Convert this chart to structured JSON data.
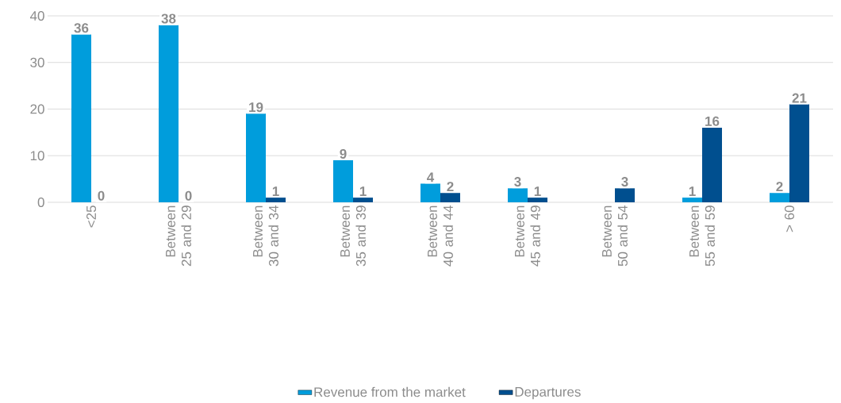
{
  "chart_data": {
    "type": "bar",
    "categories": [
      "<25",
      "Between 25 and 29",
      "Between 30 and 34",
      "Between 35 and 39",
      "Between 40 and 44",
      "Between 45 and 49",
      "Between 50 and 54",
      "Between 55 and 59",
      "> 60"
    ],
    "series": [
      {
        "name": "Revenue from the market",
        "color": "#009ddc",
        "values": [
          36,
          38,
          19,
          9,
          4,
          3,
          null,
          1,
          2
        ],
        "value_labels": [
          "36",
          "38",
          "19",
          "9",
          "4",
          "3",
          null,
          "1",
          "2"
        ]
      },
      {
        "name": "Departures",
        "color": "#004f8f",
        "values": [
          0,
          0,
          1,
          1,
          2,
          1,
          3,
          16,
          21
        ],
        "value_labels": [
          "0",
          "0",
          "1",
          "1",
          "2",
          "1",
          "3",
          "16",
          "21"
        ]
      }
    ],
    "ylim": [
      0,
      40
    ],
    "yticks": [
      0,
      10,
      20,
      30,
      40
    ],
    "grid": "y",
    "legend": "bottom"
  }
}
